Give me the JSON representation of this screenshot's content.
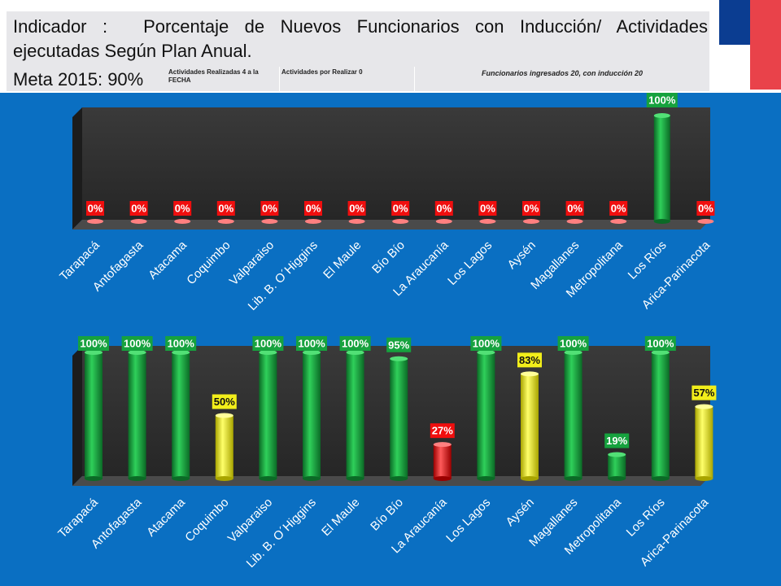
{
  "header": {
    "title_prefix": "Indicador :",
    "title_text": "Porcentaje de Nuevos Funcionarios con Inducción/ Actividades ejecutadas Según Plan Anual.",
    "meta": "Meta 2015:  90%",
    "info_realizadas": "Actividades Realizadas 4 a la FECHA",
    "info_por_realizar": "Actividades por Realizar 0",
    "info_funcionarios": "Funcionarios ingresados 20, con inducción  20"
  },
  "colors": {
    "green": "#16a23e",
    "yellow": "#f2ee1a",
    "red": "#f00e0e",
    "chart_bg": "#2f2f2f",
    "page_bg": "#0a6fc2"
  },
  "chart_data": [
    {
      "type": "bar",
      "categories": [
        "Tarapacá",
        "Antofagasta",
        "Atacama",
        "Coquimbo",
        "Valparaiso",
        "Lib. B. O´Higgins",
        "El Maule",
        "Bío Bío",
        "La Araucanía",
        "Los Lagos",
        "Aysén",
        "Magallanes",
        "Metropolitana",
        "Los Ríos",
        "Arica-Parinacota"
      ],
      "values": [
        0,
        0,
        0,
        0,
        0,
        0,
        0,
        0,
        0,
        0,
        0,
        0,
        0,
        100,
        0
      ],
      "labels": [
        "0%",
        "0%",
        "0%",
        "0%",
        "0%",
        "0%",
        "0%",
        "0%",
        "0%",
        "0%",
        "0%",
        "0%",
        "0%",
        "100%",
        "0%"
      ],
      "colors": [
        "red",
        "red",
        "red",
        "red",
        "red",
        "red",
        "red",
        "red",
        "red",
        "red",
        "red",
        "red",
        "red",
        "green",
        "red"
      ],
      "ylim": [
        0,
        100
      ]
    },
    {
      "type": "bar",
      "categories": [
        "Tarapacá",
        "Antofagasta",
        "Atacama",
        "Coquimbo",
        "Valparaiso",
        "Lib. B. O´Higgins",
        "El Maule",
        "Bío Bío",
        "La Araucanía",
        "Los Lagos",
        "Aysén",
        "Magallanes",
        "Metropolitana",
        "Los Ríos",
        "Arica-Parinacota"
      ],
      "values": [
        100,
        100,
        100,
        50,
        100,
        100,
        100,
        95,
        27,
        100,
        83,
        100,
        19,
        100,
        57
      ],
      "labels": [
        "100%",
        "100%",
        "100%",
        "50%",
        "100%",
        "100%",
        "100%",
        "95%",
        "27%",
        "100%",
        "83%",
        "100%",
        "19%",
        "100%",
        "57%"
      ],
      "colors": [
        "green",
        "green",
        "green",
        "yellow",
        "green",
        "green",
        "green",
        "green",
        "red",
        "green",
        "yellow",
        "green",
        "green",
        "green",
        "yellow"
      ],
      "ylim": [
        0,
        100
      ]
    }
  ]
}
